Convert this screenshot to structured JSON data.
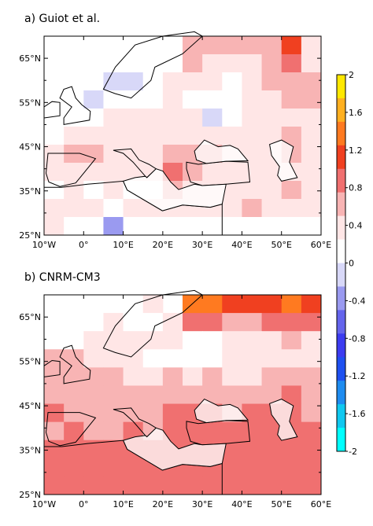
{
  "panels": [
    {
      "title": "a) Guiot et al.",
      "y_ticks": [
        "65°N",
        "55°N",
        "45°N",
        "35°N",
        "25°N"
      ],
      "x_ticks": []
    },
    {
      "title": "b) CNRM-CM3",
      "y_ticks": [
        "65°N",
        "55°N",
        "45°N",
        "35°N",
        "25°N"
      ],
      "x_ticks": [
        "10°W",
        "0°",
        "10°E",
        "20°E",
        "30°E",
        "40°E",
        "50°E",
        "60°E"
      ]
    }
  ],
  "colorbar": {
    "ticks": [
      "2",
      "1.6",
      "1.2",
      "0.8",
      "0.4",
      "0",
      "-0.4",
      "-0.8",
      "-1.2",
      "-1.6",
      "-2"
    ],
    "colors": [
      "#ffe800",
      "#ffb020",
      "#ff7a20",
      "#f04020",
      "#f07070",
      "#f8b4b4",
      "#ffe6e6",
      "#ffffff",
      "#d8d8f8",
      "#9a9af0",
      "#6464ec",
      "#3c3cf0",
      "#1e50f0",
      "#1e8cf0",
      "#10c8f0",
      "#00ffff"
    ]
  },
  "chart_data": [
    {
      "type": "heatmap",
      "title": "a) Guiot et al.",
      "x_range_deg_lon": [
        -10,
        60
      ],
      "y_range_deg_lat": [
        25,
        70
      ],
      "ylabel": "",
      "xlabel": "",
      "grid_cell_deg": 5,
      "colorscale_range": [
        -2,
        2
      ],
      "rows_lat_from_north_to_south": [
        [
          null,
          null,
          null,
          null,
          0.2,
          null,
          0.25,
          0.7,
          0.7,
          0.7,
          0.7,
          0.7,
          1.2,
          0.3
        ],
        [
          null,
          null,
          null,
          null,
          0.2,
          0.25,
          0.25,
          0.6,
          0.5,
          0.45,
          0.45,
          0.65,
          0.9,
          0.5
        ],
        [
          null,
          null,
          null,
          -0.2,
          -0.1,
          0.15,
          0.35,
          0.5,
          0.45,
          0.1,
          0.3,
          0.65,
          0.7,
          0.6
        ],
        [
          null,
          null,
          -0.1,
          0.1,
          0.15,
          0.2,
          0.3,
          0.2,
          0.15,
          0.2,
          0.35,
          0.5,
          0.6,
          0.6
        ],
        [
          null,
          0.15,
          0.25,
          0.3,
          0.3,
          0.35,
          0.35,
          0.35,
          -0.05,
          0.25,
          0.3,
          0.5,
          0.5,
          0.35
        ],
        [
          0.15,
          0.35,
          0.45,
          0.45,
          0.5,
          0.45,
          0.45,
          0.5,
          0.4,
          0.5,
          0.4,
          0.35,
          0.7,
          0.45
        ],
        [
          0.5,
          0.6,
          0.6,
          0.45,
          0.45,
          0.5,
          0.6,
          0.55,
          0.55,
          0.5,
          0.45,
          0.35,
          0.7,
          0.5
        ],
        [
          0.35,
          0.45,
          0.4,
          0.5,
          0.35,
          0.45,
          0.8,
          0.55,
          0.5,
          0.5,
          0.45,
          0.4,
          0.45,
          0.5
        ],
        [
          0.25,
          0.35,
          0.15,
          0.5,
          0.1,
          0.05,
          0.75,
          0.4,
          0.45,
          0.5,
          0.4,
          0.4,
          0.55,
          0.4
        ],
        [
          0.45,
          0.3,
          0.45,
          0.1,
          0.5,
          0.45,
          0.35,
          0.5,
          0.4,
          0.45,
          0.55,
          0.5,
          0.3,
          0.45
        ],
        [
          0.3,
          0.25,
          0.2,
          -0.45,
          0.25,
          0.15,
          0.2,
          0.2,
          0.25,
          0.2,
          0.15,
          0.2,
          0.1,
          0.15
        ]
      ]
    },
    {
      "type": "heatmap",
      "title": "b) CNRM-CM3",
      "x_range_deg_lon": [
        -10,
        60
      ],
      "y_range_deg_lat": [
        25,
        70
      ],
      "ylabel": "",
      "xlabel": "",
      "grid_cell_deg": 5,
      "colorscale_range": [
        -2,
        2
      ],
      "rows_lat_from_north_to_south": [
        [
          null,
          null,
          null,
          null,
          null,
          0.5,
          null,
          1.3,
          1.3,
          1.15,
          1.15,
          1.15,
          1.3,
          1.15
        ],
        [
          null,
          null,
          null,
          0.35,
          0.2,
          0.25,
          0.3,
          0.9,
          0.85,
          0.75,
          0.7,
          0.9,
          0.8,
          0.8
        ],
        [
          null,
          null,
          0.3,
          0.35,
          0.35,
          0.3,
          0.3,
          0.25,
          0.25,
          0.3,
          0.35,
          0.5,
          0.55,
          0.5
        ],
        [
          0.7,
          0.65,
          0.4,
          0.35,
          0.3,
          0.25,
          0.25,
          0.25,
          0.25,
          0.3,
          0.3,
          0.35,
          0.35,
          0.45
        ],
        [
          0.7,
          0.7,
          0.6,
          0.55,
          0.4,
          0.4,
          0.55,
          0.5,
          0.55,
          0.5,
          0.5,
          0.6,
          0.7,
          0.55
        ],
        [
          0.75,
          0.7,
          0.65,
          0.6,
          0.55,
          0.55,
          0.65,
          0.7,
          0.7,
          0.7,
          0.65,
          0.75,
          0.8,
          0.65
        ],
        [
          0.8,
          0.75,
          0.75,
          0.7,
          0.7,
          0.65,
          0.8,
          0.8,
          0.8,
          0.75,
          0.8,
          0.85,
          0.85,
          0.75
        ],
        [
          0.75,
          0.8,
          0.75,
          0.75,
          0.8,
          0.75,
          0.8,
          0.85,
          0.8,
          0.85,
          0.85,
          0.85,
          0.85,
          0.8
        ],
        [
          0.8,
          0.8,
          0.85,
          0.9,
          0.9,
          0.85,
          0.9,
          0.9,
          0.85,
          0.85,
          0.9,
          0.9,
          0.95,
          0.85
        ],
        [
          0.8,
          0.85,
          0.95,
          1.0,
          0.95,
          0.95,
          0.95,
          0.9,
          0.9,
          0.9,
          0.95,
          0.95,
          0.9,
          0.85
        ],
        [
          0.85,
          0.9,
          1.0,
          1.0,
          1.0,
          0.95,
          0.9,
          0.85,
          0.85,
          0.85,
          0.9,
          0.9,
          0.85,
          0.8
        ]
      ]
    }
  ]
}
